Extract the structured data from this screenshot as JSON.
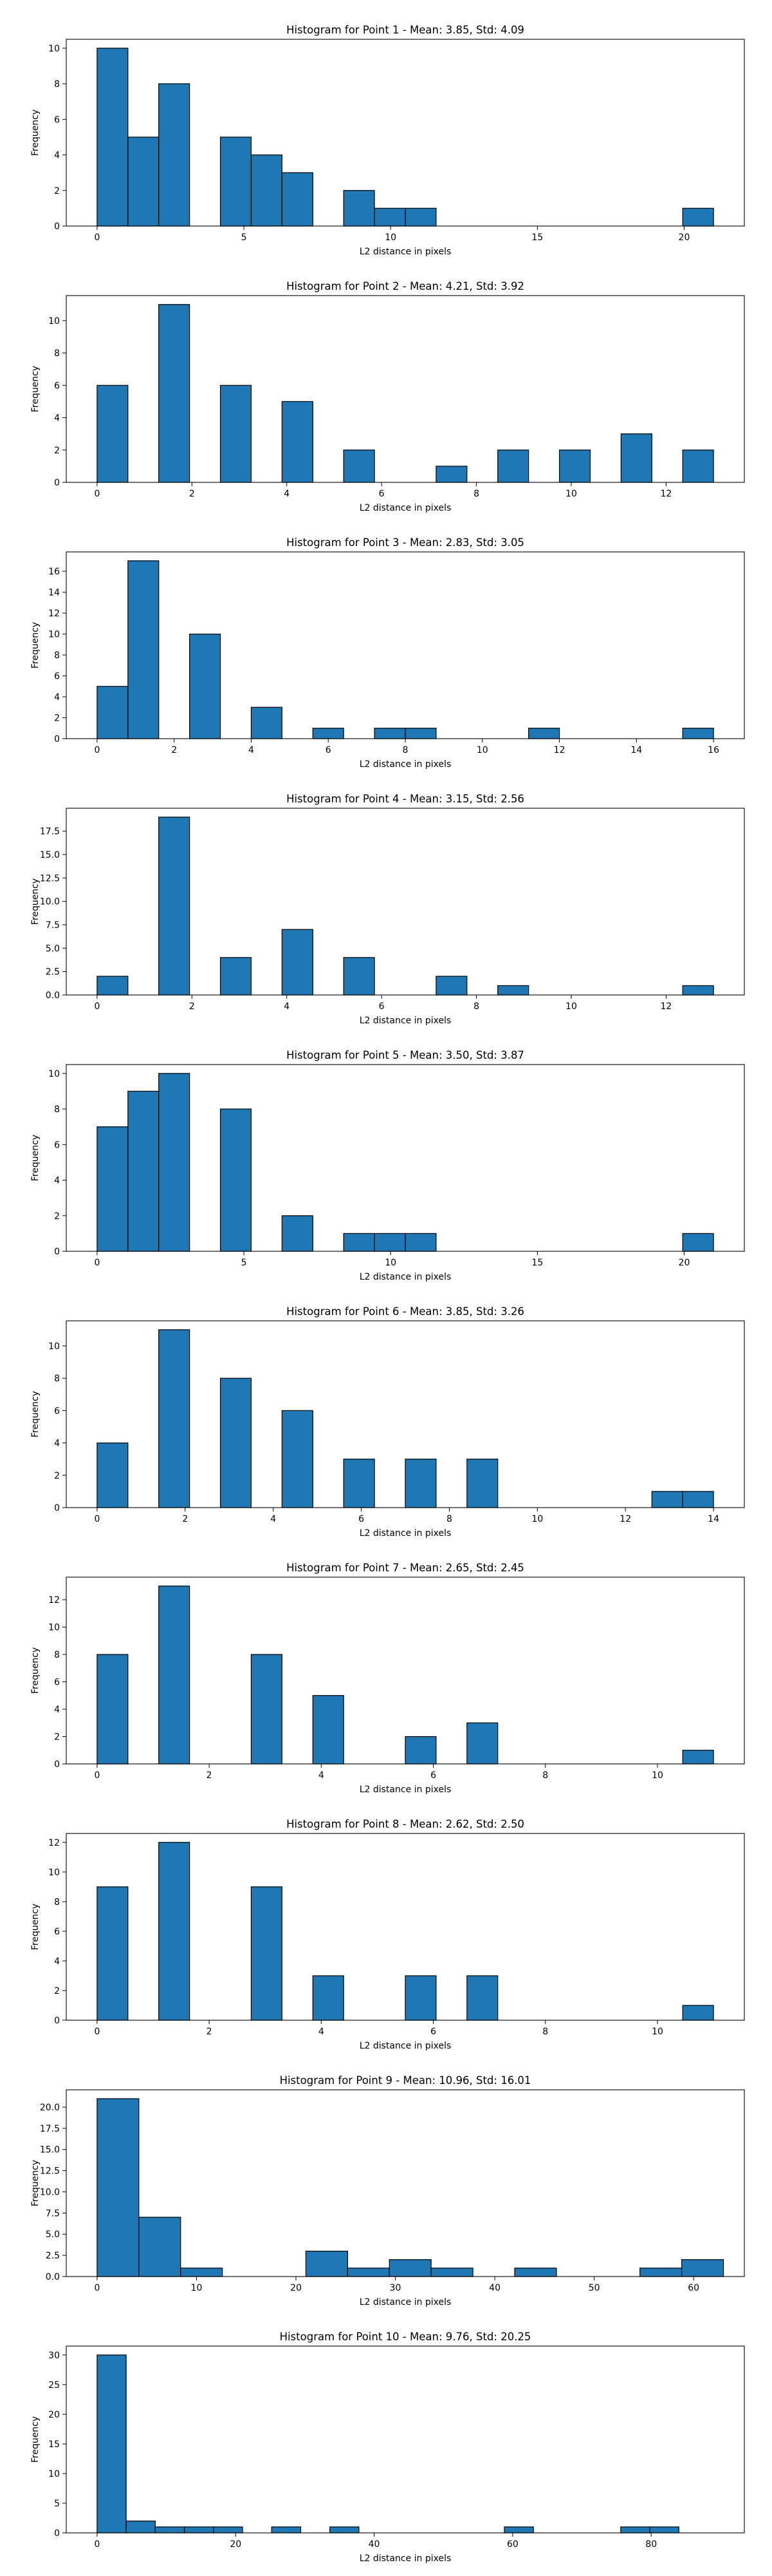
{
  "chart_data": [
    {
      "type": "bar",
      "title": "Histogram for Point 1 - Mean: 3.85, Std: 4.09",
      "xlabel": "L2 distance in pixels",
      "ylabel": "Frequency",
      "color": "#1f77b4",
      "xlim": [
        -1.05,
        22.05
      ],
      "ylim": [
        0,
        10.5
      ],
      "xticks": [
        0,
        5,
        10,
        15,
        20
      ],
      "yticks": [
        0,
        2,
        4,
        6,
        8,
        10
      ],
      "bins": [
        [
          0,
          1.05,
          10
        ],
        [
          1.05,
          2.1,
          5
        ],
        [
          2.1,
          3.15,
          8
        ],
        [
          3.15,
          4.2,
          0
        ],
        [
          4.2,
          5.25,
          5
        ],
        [
          5.25,
          6.3,
          4
        ],
        [
          6.3,
          7.35,
          3
        ],
        [
          7.35,
          8.4,
          0
        ],
        [
          8.4,
          9.45,
          2
        ],
        [
          9.45,
          10.5,
          1
        ],
        [
          10.5,
          11.55,
          1
        ],
        [
          11.55,
          12.6,
          0
        ],
        [
          12.6,
          13.65,
          0
        ],
        [
          13.65,
          14.7,
          0
        ],
        [
          14.7,
          15.75,
          0
        ],
        [
          15.75,
          16.8,
          0
        ],
        [
          16.8,
          17.85,
          0
        ],
        [
          17.85,
          18.9,
          0
        ],
        [
          18.9,
          19.95,
          0
        ],
        [
          19.95,
          21,
          1
        ]
      ]
    },
    {
      "type": "bar",
      "title": "Histogram for Point 2 - Mean: 4.21, Std: 3.92",
      "xlabel": "L2 distance in pixels",
      "ylabel": "Frequency",
      "color": "#1f77b4",
      "xlim": [
        -0.65,
        13.65
      ],
      "ylim": [
        0,
        11.55
      ],
      "xticks": [
        0,
        2,
        4,
        6,
        8,
        10,
        12
      ],
      "yticks": [
        0,
        2,
        4,
        6,
        8,
        10
      ],
      "bins": [
        [
          0,
          0.65,
          6
        ],
        [
          0.65,
          1.3,
          0
        ],
        [
          1.3,
          1.95,
          11
        ],
        [
          1.95,
          2.6,
          0
        ],
        [
          2.6,
          3.25,
          6
        ],
        [
          3.25,
          3.9,
          0
        ],
        [
          3.9,
          4.55,
          5
        ],
        [
          4.55,
          5.2,
          0
        ],
        [
          5.2,
          5.85,
          2
        ],
        [
          5.85,
          6.5,
          0
        ],
        [
          6.5,
          7.15,
          0
        ],
        [
          7.15,
          7.8,
          1
        ],
        [
          7.8,
          8.45,
          0
        ],
        [
          8.45,
          9.1,
          2
        ],
        [
          9.1,
          9.75,
          0
        ],
        [
          9.75,
          10.4,
          2
        ],
        [
          10.4,
          11.05,
          0
        ],
        [
          11.05,
          11.7,
          3
        ],
        [
          11.7,
          12.35,
          0
        ],
        [
          12.35,
          13,
          2
        ]
      ]
    },
    {
      "type": "bar",
      "title": "Histogram for Point 3 - Mean: 2.83, Std: 3.05",
      "xlabel": "L2 distance in pixels",
      "ylabel": "Frequency",
      "color": "#1f77b4",
      "xlim": [
        -0.8,
        16.8
      ],
      "ylim": [
        0,
        17.85
      ],
      "xticks": [
        0,
        2,
        4,
        6,
        8,
        10,
        12,
        14,
        16
      ],
      "yticks": [
        0,
        2,
        4,
        6,
        8,
        10,
        12,
        14,
        16
      ],
      "bins": [
        [
          0,
          0.8,
          5
        ],
        [
          0.8,
          1.6,
          17
        ],
        [
          1.6,
          2.4,
          0
        ],
        [
          2.4,
          3.2,
          10
        ],
        [
          3.2,
          4,
          0
        ],
        [
          4,
          4.8,
          3
        ],
        [
          4.8,
          5.6,
          0
        ],
        [
          5.6,
          6.4,
          1
        ],
        [
          6.4,
          7.2,
          0
        ],
        [
          7.2,
          8,
          1
        ],
        [
          8,
          8.8,
          1
        ],
        [
          8.8,
          9.6,
          0
        ],
        [
          9.6,
          10.4,
          0
        ],
        [
          10.4,
          11.2,
          0
        ],
        [
          11.2,
          12,
          1
        ],
        [
          12,
          12.8,
          0
        ],
        [
          12.8,
          13.6,
          0
        ],
        [
          13.6,
          14.4,
          0
        ],
        [
          14.4,
          15.2,
          0
        ],
        [
          15.2,
          16,
          1
        ]
      ]
    },
    {
      "type": "bar",
      "title": "Histogram for Point 4 - Mean: 3.15, Std: 2.56",
      "xlabel": "L2 distance in pixels",
      "ylabel": "Frequency",
      "color": "#1f77b4",
      "xlim": [
        -0.65,
        13.65
      ],
      "ylim": [
        0,
        19.95
      ],
      "xticks": [
        0,
        2,
        4,
        6,
        8,
        10,
        12
      ],
      "yticks": [
        0,
        2.5,
        5.0,
        7.5,
        10.0,
        12.5,
        15.0,
        17.5
      ],
      "ytick_labels": [
        "0.0",
        "2.5",
        "5.0",
        "7.5",
        "10.0",
        "12.5",
        "15.0",
        "17.5"
      ],
      "bins": [
        [
          0,
          0.65,
          2
        ],
        [
          0.65,
          1.3,
          0
        ],
        [
          1.3,
          1.95,
          19
        ],
        [
          1.95,
          2.6,
          0
        ],
        [
          2.6,
          3.25,
          4
        ],
        [
          3.25,
          3.9,
          0
        ],
        [
          3.9,
          4.55,
          7
        ],
        [
          4.55,
          5.2,
          0
        ],
        [
          5.2,
          5.85,
          4
        ],
        [
          5.85,
          6.5,
          0
        ],
        [
          6.5,
          7.15,
          0
        ],
        [
          7.15,
          7.8,
          2
        ],
        [
          7.8,
          8.45,
          0
        ],
        [
          8.45,
          9.1,
          1
        ],
        [
          9.1,
          9.75,
          0
        ],
        [
          9.75,
          10.4,
          0
        ],
        [
          10.4,
          11.05,
          0
        ],
        [
          11.05,
          11.7,
          0
        ],
        [
          11.7,
          12.35,
          0
        ],
        [
          12.35,
          13,
          1
        ]
      ]
    },
    {
      "type": "bar",
      "title": "Histogram for Point 5 - Mean: 3.50, Std: 3.87",
      "xlabel": "L2 distance in pixels",
      "ylabel": "Frequency",
      "color": "#1f77b4",
      "xlim": [
        -1.05,
        22.05
      ],
      "ylim": [
        0,
        10.5
      ],
      "xticks": [
        0,
        5,
        10,
        15,
        20
      ],
      "yticks": [
        0,
        2,
        4,
        6,
        8,
        10
      ],
      "bins": [
        [
          0,
          1.05,
          7
        ],
        [
          1.05,
          2.1,
          9
        ],
        [
          2.1,
          3.15,
          10
        ],
        [
          3.15,
          4.2,
          0
        ],
        [
          4.2,
          5.25,
          8
        ],
        [
          5.25,
          6.3,
          0
        ],
        [
          6.3,
          7.35,
          2
        ],
        [
          7.35,
          8.4,
          0
        ],
        [
          8.4,
          9.45,
          1
        ],
        [
          9.45,
          10.5,
          1
        ],
        [
          10.5,
          11.55,
          1
        ],
        [
          11.55,
          12.6,
          0
        ],
        [
          12.6,
          13.65,
          0
        ],
        [
          13.65,
          14.7,
          0
        ],
        [
          14.7,
          15.75,
          0
        ],
        [
          15.75,
          16.8,
          0
        ],
        [
          16.8,
          17.85,
          0
        ],
        [
          17.85,
          18.9,
          0
        ],
        [
          18.9,
          19.95,
          0
        ],
        [
          19.95,
          21,
          1
        ]
      ]
    },
    {
      "type": "bar",
      "title": "Histogram for Point 6 - Mean: 3.85, Std: 3.26",
      "xlabel": "L2 distance in pixels",
      "ylabel": "Frequency",
      "color": "#1f77b4",
      "xlim": [
        -0.7,
        14.7
      ],
      "ylim": [
        0,
        11.55
      ],
      "xticks": [
        0,
        2,
        4,
        6,
        8,
        10,
        12,
        14
      ],
      "yticks": [
        0,
        2,
        4,
        6,
        8,
        10
      ],
      "bins": [
        [
          0,
          0.7,
          4
        ],
        [
          0.7,
          1.4,
          0
        ],
        [
          1.4,
          2.1,
          11
        ],
        [
          2.1,
          2.8,
          0
        ],
        [
          2.8,
          3.5,
          8
        ],
        [
          3.5,
          4.2,
          0
        ],
        [
          4.2,
          4.9,
          6
        ],
        [
          4.9,
          5.6,
          0
        ],
        [
          5.6,
          6.3,
          3
        ],
        [
          6.3,
          7,
          0
        ],
        [
          7,
          7.7,
          3
        ],
        [
          7.7,
          8.4,
          0
        ],
        [
          8.4,
          9.1,
          3
        ],
        [
          9.1,
          9.8,
          0
        ],
        [
          9.8,
          10.5,
          0
        ],
        [
          10.5,
          11.2,
          0
        ],
        [
          11.2,
          11.9,
          0
        ],
        [
          11.9,
          12.6,
          0
        ],
        [
          12.6,
          13.3,
          1
        ],
        [
          13.3,
          14,
          1
        ]
      ]
    },
    {
      "type": "bar",
      "title": "Histogram for Point 7 - Mean: 2.65, Std: 2.45",
      "xlabel": "L2 distance in pixels",
      "ylabel": "Frequency",
      "color": "#1f77b4",
      "xlim": [
        -0.55,
        11.55
      ],
      "ylim": [
        0,
        13.65
      ],
      "xticks": [
        0,
        2,
        4,
        6,
        8,
        10
      ],
      "yticks": [
        0,
        2,
        4,
        6,
        8,
        10,
        12
      ],
      "bins": [
        [
          0,
          0.55,
          8
        ],
        [
          0.55,
          1.1,
          0
        ],
        [
          1.1,
          1.65,
          13
        ],
        [
          1.65,
          2.2,
          0
        ],
        [
          2.2,
          2.75,
          0
        ],
        [
          2.75,
          3.3,
          8
        ],
        [
          3.3,
          3.85,
          0
        ],
        [
          3.85,
          4.4,
          5
        ],
        [
          4.4,
          4.95,
          0
        ],
        [
          4.95,
          5.5,
          0
        ],
        [
          5.5,
          6.05,
          2
        ],
        [
          6.05,
          6.6,
          0
        ],
        [
          6.6,
          7.15,
          3
        ],
        [
          7.15,
          7.7,
          0
        ],
        [
          7.7,
          8.25,
          0
        ],
        [
          8.25,
          8.8,
          0
        ],
        [
          8.8,
          9.35,
          0
        ],
        [
          9.35,
          9.9,
          0
        ],
        [
          9.9,
          10.45,
          0
        ],
        [
          10.45,
          11,
          1
        ]
      ]
    },
    {
      "type": "bar",
      "title": "Histogram for Point 8 - Mean: 2.62, Std: 2.50",
      "xlabel": "L2 distance in pixels",
      "ylabel": "Frequency",
      "color": "#1f77b4",
      "xlim": [
        -0.55,
        11.55
      ],
      "ylim": [
        0,
        12.6
      ],
      "xticks": [
        0,
        2,
        4,
        6,
        8,
        10
      ],
      "yticks": [
        0,
        2,
        4,
        6,
        8,
        10,
        12
      ],
      "bins": [
        [
          0,
          0.55,
          9
        ],
        [
          0.55,
          1.1,
          0
        ],
        [
          1.1,
          1.65,
          12
        ],
        [
          1.65,
          2.2,
          0
        ],
        [
          2.2,
          2.75,
          0
        ],
        [
          2.75,
          3.3,
          9
        ],
        [
          3.3,
          3.85,
          0
        ],
        [
          3.85,
          4.4,
          3
        ],
        [
          4.4,
          4.95,
          0
        ],
        [
          4.95,
          5.5,
          0
        ],
        [
          5.5,
          6.05,
          3
        ],
        [
          6.05,
          6.6,
          0
        ],
        [
          6.6,
          7.15,
          3
        ],
        [
          7.15,
          7.7,
          0
        ],
        [
          7.7,
          8.25,
          0
        ],
        [
          8.25,
          8.8,
          0
        ],
        [
          8.8,
          9.35,
          0
        ],
        [
          9.35,
          9.9,
          0
        ],
        [
          9.9,
          10.45,
          0
        ],
        [
          10.45,
          11,
          1
        ]
      ]
    },
    {
      "type": "bar",
      "title": "Histogram for Point 9 - Mean: 10.96, Std: 16.01",
      "xlabel": "L2 distance in pixels",
      "ylabel": "Frequency",
      "color": "#1f77b4",
      "xlim": [
        -3.1,
        65.1
      ],
      "ylim": [
        0,
        22.05
      ],
      "xticks": [
        0,
        10,
        20,
        30,
        40,
        50,
        60
      ],
      "yticks": [
        0,
        2.5,
        5.0,
        7.5,
        10.0,
        12.5,
        15.0,
        17.5,
        20.0
      ],
      "ytick_labels": [
        "0.0",
        "2.5",
        "5.0",
        "7.5",
        "10.0",
        "12.5",
        "15.0",
        "17.5",
        "20.0"
      ],
      "bins": [
        [
          0,
          4.2,
          21
        ],
        [
          4.2,
          8.4,
          7
        ],
        [
          8.4,
          12.6,
          1
        ],
        [
          12.6,
          16.8,
          0
        ],
        [
          16.8,
          21,
          0
        ],
        [
          21,
          25.2,
          3
        ],
        [
          25.2,
          29.4,
          1
        ],
        [
          29.4,
          33.6,
          2
        ],
        [
          33.6,
          37.8,
          1
        ],
        [
          37.8,
          42,
          0
        ],
        [
          42,
          46.2,
          1
        ],
        [
          46.2,
          50.4,
          0
        ],
        [
          50.4,
          54.6,
          0
        ],
        [
          54.6,
          58.8,
          1
        ],
        [
          58.8,
          63,
          2
        ]
      ]
    },
    {
      "type": "bar",
      "title": "Histogram for Point 10 - Mean: 9.76, Std: 20.25",
      "xlabel": "L2 distance in pixels",
      "ylabel": "Frequency",
      "color": "#1f77b4",
      "xlim": [
        -4.45,
        93.45
      ],
      "ylim": [
        0,
        31.5
      ],
      "xticks": [
        0,
        20,
        40,
        60,
        80
      ],
      "yticks": [
        0,
        5,
        10,
        15,
        20,
        25,
        30
      ],
      "bins": [
        [
          0,
          4.2,
          30
        ],
        [
          4.2,
          8.4,
          2
        ],
        [
          8.4,
          12.6,
          1
        ],
        [
          12.6,
          16.8,
          1
        ],
        [
          16.8,
          21,
          1
        ],
        [
          21,
          25.2,
          0
        ],
        [
          25.2,
          29.4,
          1
        ],
        [
          29.4,
          33.6,
          0
        ],
        [
          33.6,
          37.8,
          1
        ],
        [
          37.8,
          42,
          0
        ],
        [
          42,
          46.2,
          0
        ],
        [
          46.2,
          50.4,
          0
        ],
        [
          50.4,
          54.6,
          0
        ],
        [
          54.6,
          58.8,
          0
        ],
        [
          58.8,
          63,
          1
        ],
        [
          63,
          67.2,
          0
        ],
        [
          67.2,
          71.4,
          0
        ],
        [
          71.4,
          75.6,
          0
        ],
        [
          75.6,
          79.8,
          1
        ],
        [
          79.8,
          84,
          1
        ]
      ]
    }
  ]
}
